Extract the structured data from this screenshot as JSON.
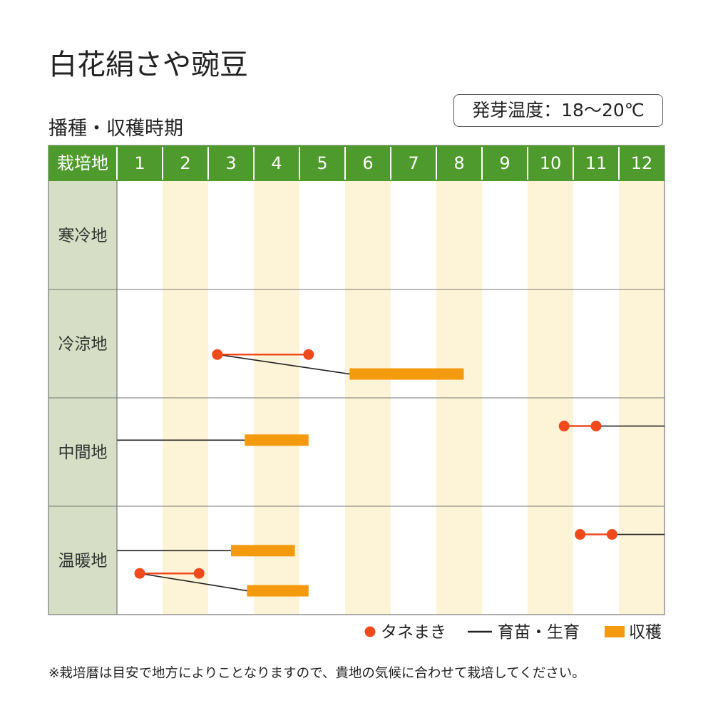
{
  "title": "白花絹さや豌豆",
  "section_title": "播種・収穫時期",
  "germination_label": "発芽温度：18〜20℃",
  "note": "※栽培暦は目安で地方によりことなりますので、貴地の気候に合わせて栽培してください。",
  "colors": {
    "header_green": "#4e9a2c",
    "region_column": "#d6dfc5",
    "stripe": "#fdf3d6",
    "sowing": "#f04a1c",
    "harvest": "#f39a0e",
    "growing": "#222222",
    "grid": "#777777"
  },
  "chart_data": {
    "type": "table",
    "header_label": "栽培地",
    "months": [
      "1",
      "2",
      "3",
      "4",
      "5",
      "6",
      "7",
      "8",
      "9",
      "10",
      "11",
      "12"
    ],
    "regions": [
      {
        "name": "寒冷地",
        "sowing": [],
        "growing": [],
        "harvest": [],
        "links": []
      },
      {
        "name": "冷涼地",
        "sowing": [
          {
            "start": 3.2,
            "end": 5.2,
            "lane": 0.6
          }
        ],
        "growing": [],
        "harvest": [
          {
            "start": 6.1,
            "end": 8.6,
            "lane": 0.78
          }
        ],
        "links": [
          {
            "from": [
              3.2,
              0.6
            ],
            "to": [
              6.1,
              0.78
            ]
          }
        ]
      },
      {
        "name": "中間地",
        "sowing": [
          {
            "start": 10.8,
            "end": 11.5,
            "lane": 0.26
          }
        ],
        "growing": [
          {
            "start": 1.0,
            "end": 3.8,
            "lane": 0.39
          },
          {
            "start": 11.5,
            "end": 13.0,
            "lane": 0.26
          }
        ],
        "harvest": [
          {
            "start": 3.8,
            "end": 5.2,
            "lane": 0.39
          }
        ],
        "links": []
      },
      {
        "name": "温暖地",
        "sowing": [
          {
            "start": 11.15,
            "end": 11.85,
            "lane": 0.26
          },
          {
            "start": 1.5,
            "end": 2.8,
            "lane": 0.62
          }
        ],
        "growing": [
          {
            "start": 11.85,
            "end": 13.0,
            "lane": 0.26
          },
          {
            "start": 1.0,
            "end": 3.5,
            "lane": 0.41
          }
        ],
        "harvest": [
          {
            "start": 3.5,
            "end": 4.9,
            "lane": 0.41
          },
          {
            "start": 3.85,
            "end": 5.2,
            "lane": 0.78
          }
        ],
        "links": [
          {
            "from": [
              1.5,
              0.62
            ],
            "to": [
              3.85,
              0.78
            ]
          }
        ]
      }
    ],
    "legend": [
      {
        "key": "sowing",
        "label": "タネまき"
      },
      {
        "key": "growing",
        "label": "育苗・生育"
      },
      {
        "key": "harvest",
        "label": "収穫"
      }
    ]
  }
}
